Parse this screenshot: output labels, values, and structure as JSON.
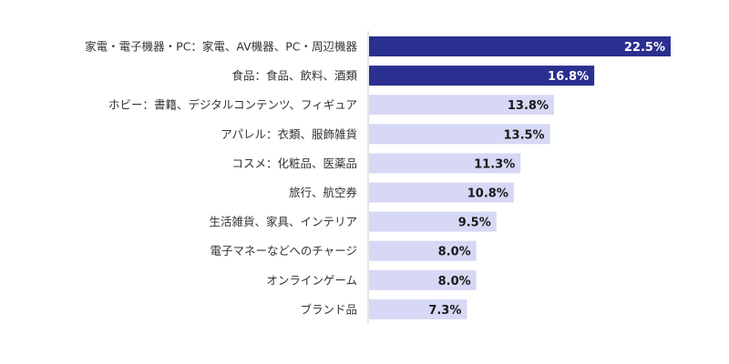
{
  "chart_data": {
    "type": "bar",
    "orientation": "horizontal",
    "categories": [
      "家電・電子機器・PC：家電、AV機器、PC・周辺機器",
      "食品：食品、飲料、酒類",
      "ホビー：書籍、デジタルコンテンツ、フィギュア",
      "アパレル：衣類、服飾雑貨",
      "コスメ：化粧品、医薬品",
      "旅行、航空券",
      "生活雑貨、家具、インテリア",
      "電子マネーなどへのチャージ",
      "オンラインゲーム",
      "ブランド品"
    ],
    "values": [
      22.5,
      16.8,
      13.8,
      13.5,
      11.3,
      10.8,
      9.5,
      8.0,
      8.0,
      7.3
    ],
    "value_labels": [
      "22.5%",
      "16.8%",
      "13.8%",
      "13.5%",
      "11.3%",
      "10.8%",
      "9.5%",
      "8.0%",
      "8.0%",
      "7.3%"
    ],
    "highlight_count": 2,
    "xlim": [
      0,
      22.5
    ],
    "grid": false,
    "colors": {
      "highlight": "#2b2f8f",
      "normal": "#d6d8f5",
      "highlight_text": "#ffffff",
      "normal_text": "#1a1a1a",
      "axis": "#cccccc"
    }
  }
}
